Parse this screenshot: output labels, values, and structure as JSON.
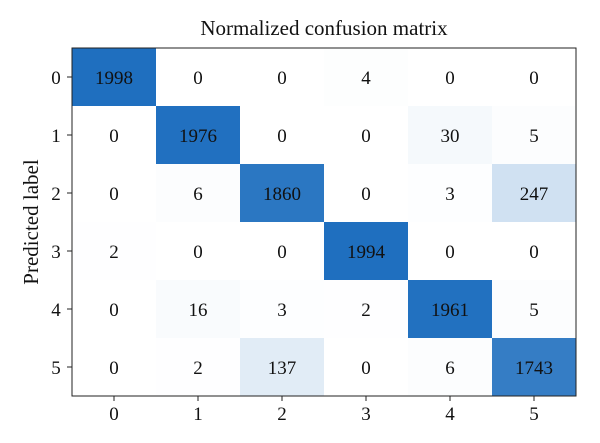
{
  "chart_data": {
    "type": "heatmap",
    "title": "Normalized confusion matrix",
    "xlabel": "",
    "ylabel": "Predicted label",
    "x_tick_labels": [
      "0",
      "1",
      "2",
      "3",
      "4",
      "5"
    ],
    "y_tick_labels": [
      "0",
      "1",
      "2",
      "3",
      "4",
      "5"
    ],
    "matrix": [
      [
        1998,
        0,
        0,
        4,
        0,
        0
      ],
      [
        0,
        1976,
        0,
        0,
        30,
        5
      ],
      [
        0,
        6,
        1860,
        0,
        3,
        247
      ],
      [
        2,
        0,
        0,
        1994,
        0,
        0
      ],
      [
        0,
        16,
        3,
        2,
        1961,
        5
      ],
      [
        0,
        2,
        137,
        0,
        6,
        1743
      ]
    ],
    "value_range": [
      0,
      1998
    ],
    "colormap_low": "#ffffff",
    "colormap_high": "#1f6fbf",
    "grid": false,
    "legend": "none"
  }
}
